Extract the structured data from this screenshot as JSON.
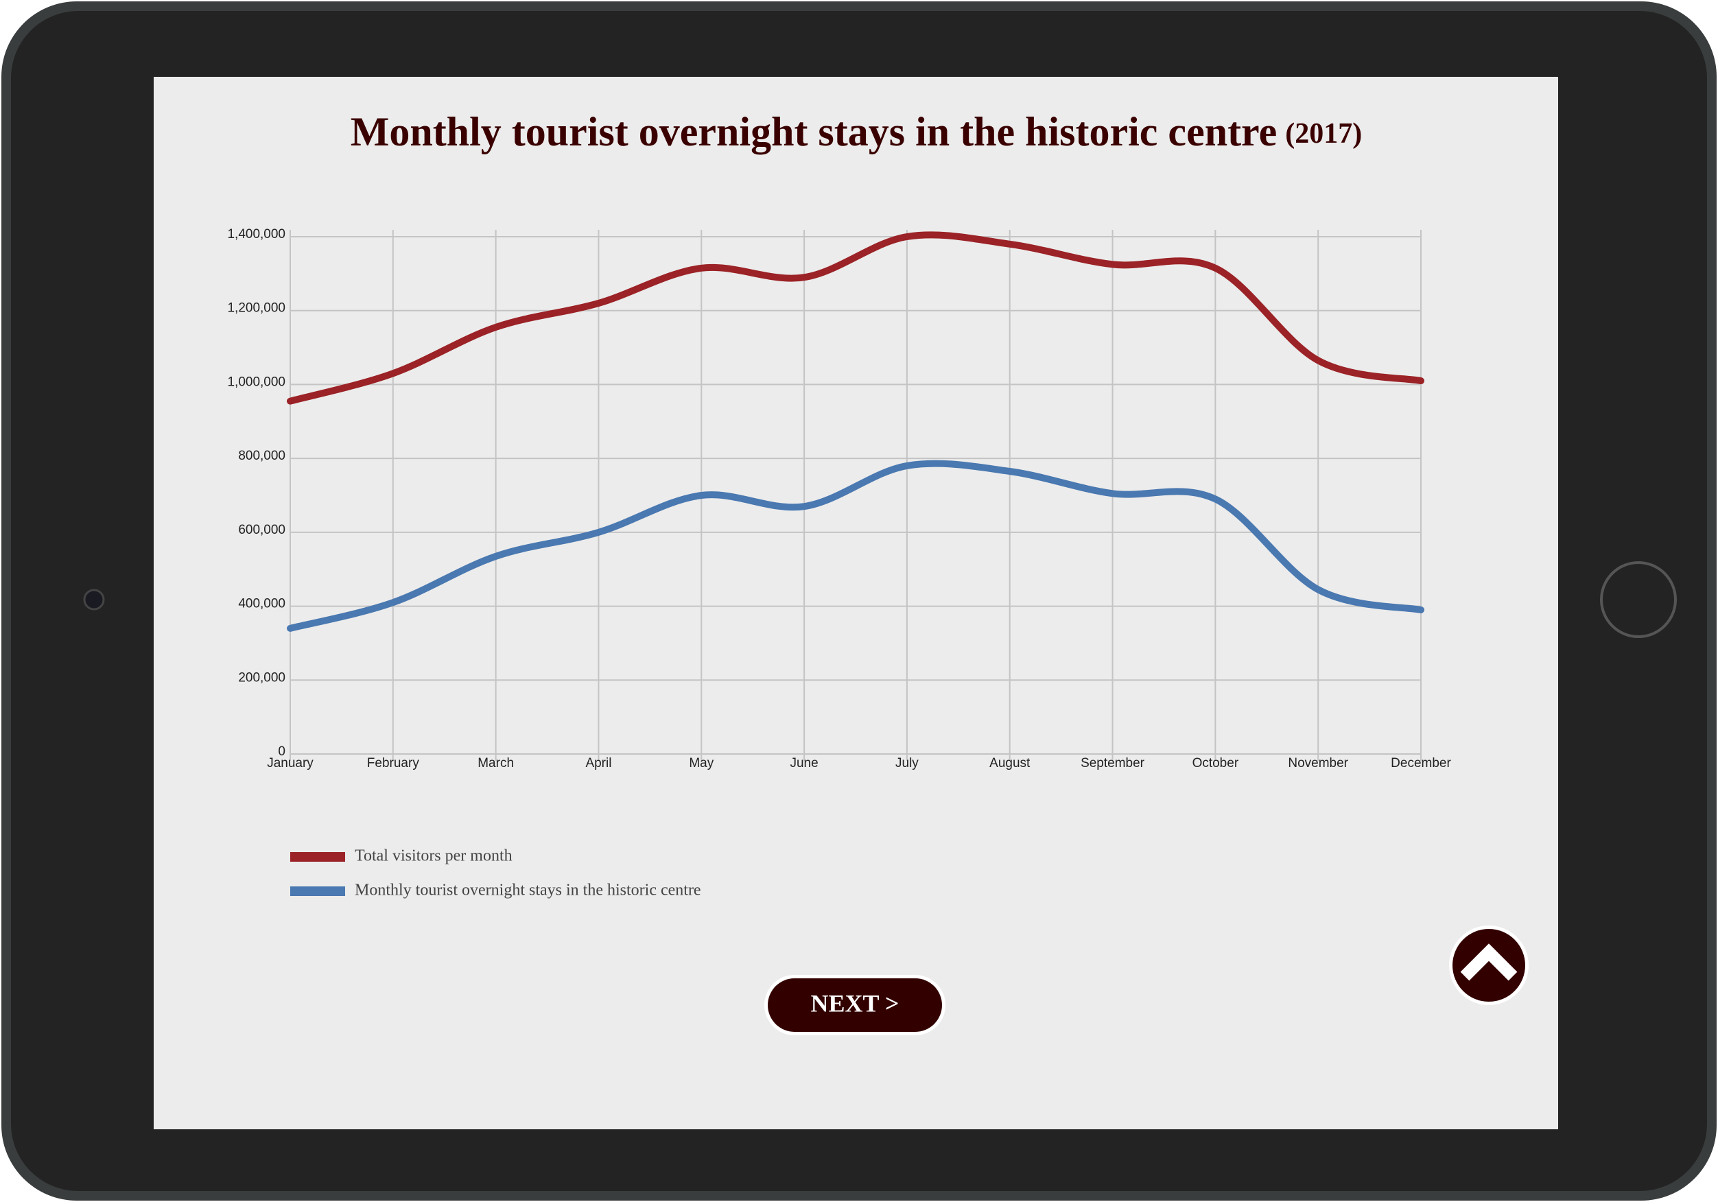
{
  "chart_data": {
    "type": "line",
    "title": "Monthly tourist overnight stays in the historic centre",
    "subtitle": "(2017)",
    "categories": [
      "January",
      "February",
      "March",
      "April",
      "May",
      "June",
      "July",
      "August",
      "September",
      "October",
      "November",
      "December"
    ],
    "series": [
      {
        "name": "Total visitors per month",
        "color": "#9b2226",
        "values": [
          955000,
          1030000,
          1155000,
          1220000,
          1315000,
          1290000,
          1400000,
          1380000,
          1325000,
          1315000,
          1065000,
          1010000
        ]
      },
      {
        "name": "Monthly tourist overnight stays in the historic centre",
        "color": "#4a78b0",
        "values": [
          340000,
          410000,
          535000,
          600000,
          700000,
          670000,
          780000,
          765000,
          705000,
          690000,
          445000,
          390000
        ]
      }
    ],
    "ylim": [
      0,
      1400000
    ],
    "yticks": [
      0,
      {
        "value": 200000,
        "label": "200,000"
      },
      {
        "value": 400000,
        "label": "400,000"
      },
      {
        "value": 600000,
        "label": "600,000"
      },
      {
        "value": 800000,
        "label": "800,000"
      },
      {
        "value": 1000000,
        "label": "1,000,000"
      },
      {
        "value": 1200000,
        "label": "1,200,000"
      },
      {
        "value": 1400000,
        "label": "1,400,000"
      }
    ],
    "grid": true
  },
  "ui": {
    "next_button": "NEXT >"
  }
}
